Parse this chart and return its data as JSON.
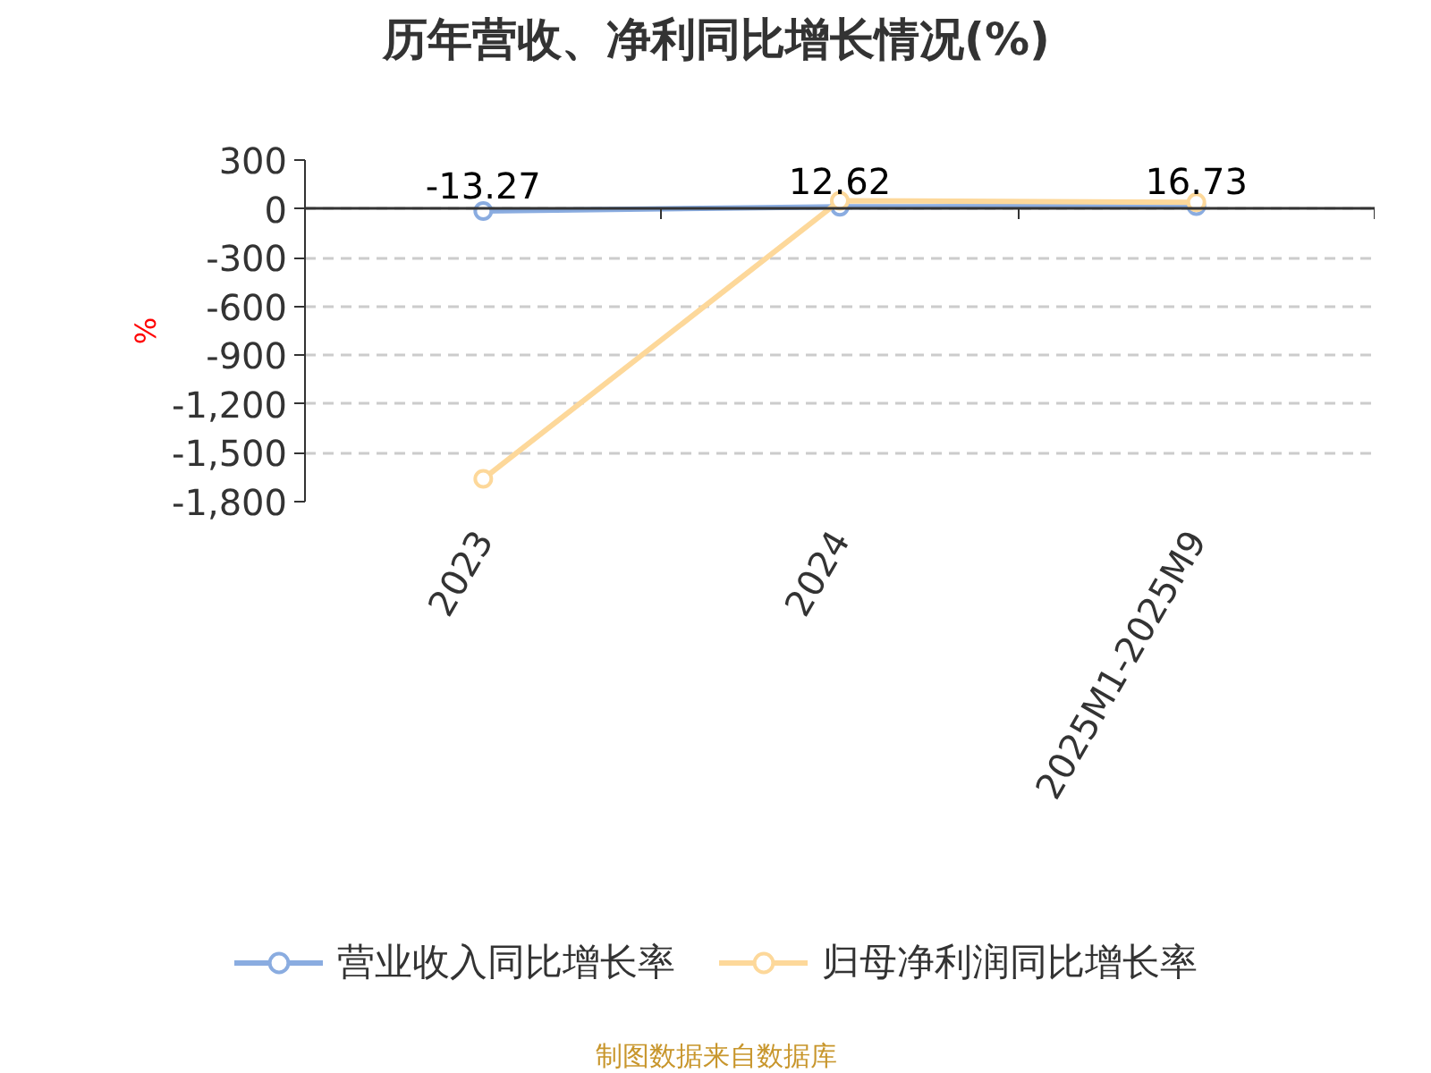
{
  "chart_data": {
    "type": "line",
    "title": "历年营收、净利同比增长情况(%)",
    "ylabel": "%",
    "categories": [
      "2023",
      "2024",
      "2025M1-2025M9"
    ],
    "series": [
      {
        "name": "营业收入同比增长率",
        "color": "#8aace0",
        "values": [
          -13.27,
          12.62,
          16.73
        ],
        "value_labels": [
          "-13.27",
          "12.62",
          "16.73"
        ]
      },
      {
        "name": "归母净利润同比增长率",
        "color": "#fdd89a",
        "values": [
          -1660,
          50,
          40
        ]
      }
    ],
    "ylim": [
      -1800,
      300
    ],
    "yticks": [
      {
        "value": -1800,
        "label": "-1,800"
      },
      {
        "value": -1500,
        "label": "-1,500"
      },
      {
        "value": -1200,
        "label": "-1,200"
      },
      -900,
      -600,
      -300,
      0,
      300
    ],
    "grid": "y",
    "legend": "bottom",
    "marker": "circle",
    "line_style": "solid",
    "annotations": [
      "制图数据来自数据库"
    ]
  }
}
